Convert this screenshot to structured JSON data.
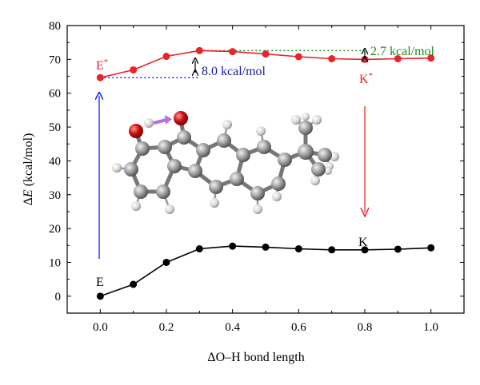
{
  "chart_data": {
    "type": "line",
    "xlabel_prefix": "Δ",
    "xlabel_rest": "O–H bond length",
    "ylabel_prefix": "Δ",
    "ylabel_italic": "E",
    "ylabel_rest": " (kcal/mol)",
    "xlim": [
      -0.1,
      1.1
    ],
    "ylim": [
      -5,
      80
    ],
    "xticks": [
      0.0,
      0.2,
      0.4,
      0.6,
      0.8,
      1.0
    ],
    "xtick_labels": [
      "0.0",
      "0.2",
      "0.4",
      "0.6",
      "0.8",
      "1.0"
    ],
    "yticks": [
      0,
      10,
      20,
      30,
      40,
      50,
      60,
      70,
      80
    ],
    "ytick_labels": [
      "0",
      "10",
      "20",
      "30",
      "40",
      "50",
      "60",
      "70",
      "80"
    ],
    "grid": false,
    "series": [
      {
        "color": "#e8232a",
        "x": [
          0.0,
          0.1,
          0.2,
          0.3,
          0.4,
          0.5,
          0.6,
          0.7,
          0.8,
          0.9,
          1.0
        ],
        "values": [
          64.6,
          66.9,
          70.9,
          72.6,
          72.3,
          71.6,
          70.8,
          70.2,
          70.0,
          70.2,
          70.4
        ]
      },
      {
        "color": "#000000",
        "x": [
          0.0,
          0.1,
          0.2,
          0.3,
          0.4,
          0.5,
          0.6,
          0.7,
          0.8,
          0.9,
          1.0
        ],
        "values": [
          0.0,
          3.5,
          10.0,
          14.0,
          14.8,
          14.5,
          14.0,
          13.7,
          13.7,
          13.9,
          14.3
        ]
      }
    ],
    "annotations": {
      "e_star": "E",
      "e_star_sup": "*",
      "k_star": "K",
      "k_star_sup": "*",
      "e": "E",
      "k": "K",
      "barrier_forward": "8.0 kcal/mol",
      "barrier_reverse": "2.7 kcal/mol"
    },
    "colors": {
      "excited": "#e8232a",
      "ground": "#000000",
      "absorption_arrow": "#1a1aff",
      "forward_label": "#1a1aa8",
      "reverse_label": "#1f8a1f",
      "emission_arrow": "#e8232a"
    },
    "molecule_icon": "molecule-ball-and-stick-icon"
  }
}
